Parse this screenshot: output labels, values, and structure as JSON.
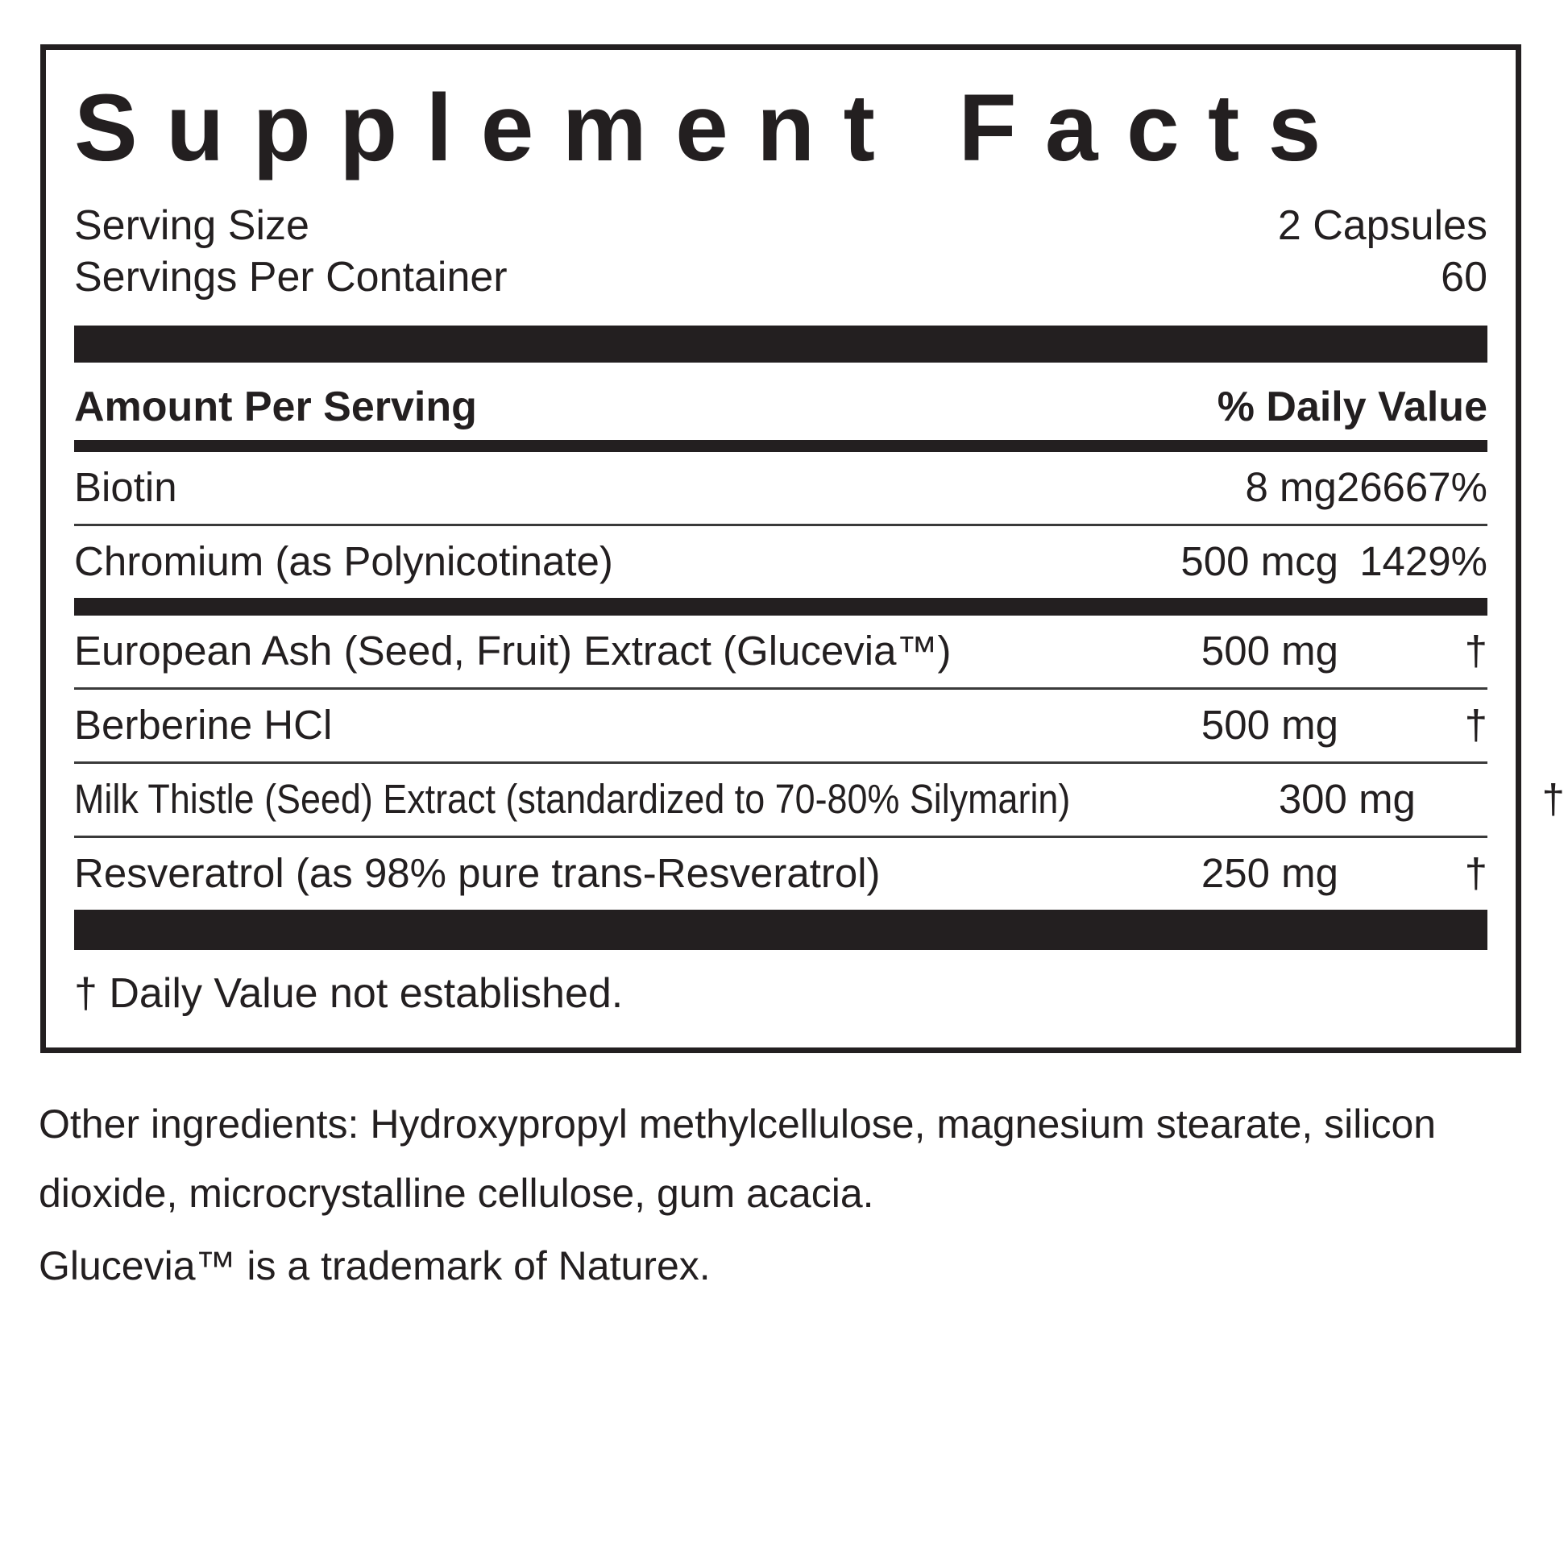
{
  "label": {
    "title": "Supplement Facts",
    "serving": {
      "size_label": "Serving Size",
      "size_value": "2 Capsules",
      "container_label": "Servings Per Container",
      "container_value": "60"
    },
    "columns": {
      "amount": "Amount Per Serving",
      "daily_value": "% Daily Value"
    },
    "rows": [
      {
        "name": "Biotin",
        "amount": "8 mg",
        "dv": "26667%"
      },
      {
        "name": "Chromium (as Polynicotinate)",
        "amount": "500 mcg",
        "dv": "1429%"
      },
      {
        "name": "European Ash (Seed, Fruit) Extract (Glucevia™)",
        "amount": "500 mg",
        "dv": "†"
      },
      {
        "name": "Berberine HCl",
        "amount": "500 mg",
        "dv": "†"
      },
      {
        "name": "Milk Thistle (Seed) Extract (standardized to 70-80% Silymarin)",
        "amount": "300 mg",
        "dv": "†"
      },
      {
        "name": "Resveratrol (as 98% pure trans-Resveratrol)",
        "amount": "250 mg",
        "dv": "†"
      }
    ],
    "footnote": "† Daily Value not established.",
    "other_ingredients": {
      "line1": "Other ingredients: Hydroxypropyl methylcellulose, magnesium stearate, silicon",
      "line2": "dioxide, microcrystalline cellulose, gum acacia."
    },
    "trademark_note": "Glucevia™ is a trademark of Naturex.",
    "colors": {
      "ink": "#231f20",
      "background": "#ffffff"
    }
  }
}
